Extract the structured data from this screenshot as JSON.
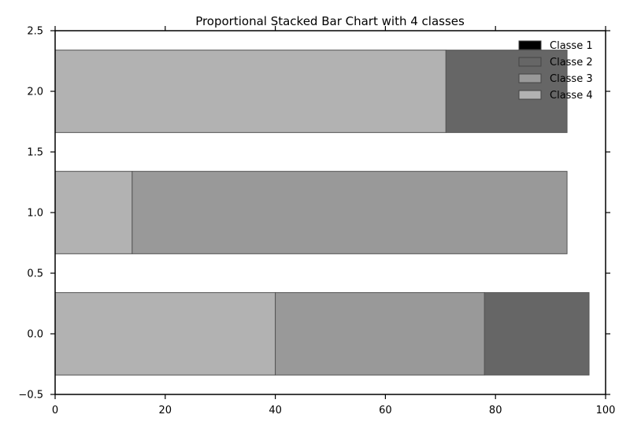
{
  "chart_data": {
    "type": "bar",
    "orientation": "horizontal",
    "stacked": true,
    "title": "Proportional Stacked Bar Chart with 4 classes",
    "xlabel": "",
    "ylabel": "",
    "xlim": [
      0,
      100
    ],
    "ylim": [
      -0.5,
      2.5
    ],
    "x_ticks": [
      0,
      20,
      40,
      60,
      80,
      100
    ],
    "y_ticks": [
      -0.5,
      0.0,
      0.5,
      1.0,
      1.5,
      2.0,
      2.5
    ],
    "x_tick_labels": [
      "0",
      "20",
      "40",
      "60",
      "80",
      "100"
    ],
    "y_tick_labels": [
      "−0.5",
      "0.0",
      "0.5",
      "1.0",
      "1.5",
      "2.0",
      "2.5"
    ],
    "bar_positions": [
      0,
      1,
      2
    ],
    "bar_height": 0.68,
    "legend": {
      "position": "top-right"
    },
    "series": [
      {
        "name": "Classe 4",
        "color": "#b2b2b2",
        "values": [
          40,
          14,
          71
        ]
      },
      {
        "name": "Classe 3",
        "color": "#999999",
        "values": [
          38,
          79,
          0
        ]
      },
      {
        "name": "Classe 2",
        "color": "#666666",
        "values": [
          19,
          0,
          22
        ]
      },
      {
        "name": "Classe 1",
        "color": "#000000",
        "values": [
          0,
          0,
          0
        ]
      }
    ],
    "legend_order": [
      "Classe 1",
      "Classe 2",
      "Classe 3",
      "Classe 4"
    ],
    "grid": false
  }
}
